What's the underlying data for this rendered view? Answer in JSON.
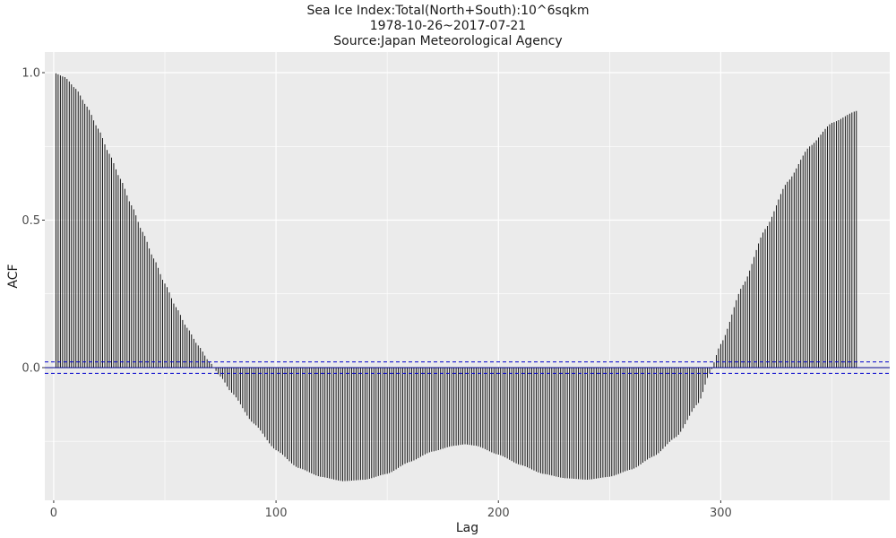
{
  "chart_data": {
    "type": "bar",
    "subtype": "acf-stem",
    "title": [
      "Sea Ice Index:Total(North+South):10^6sqkm",
      "1978-10-26~2017-07-21",
      "Source:Japan Meteorological Agency"
    ],
    "xlabel": "Lag",
    "ylabel": "ACF",
    "xlim": [
      -4,
      376
    ],
    "ylim": [
      -0.45,
      1.07
    ],
    "x_ticks": [
      0,
      100,
      200,
      300
    ],
    "y_ticks": [
      0.0,
      0.5,
      1.0
    ],
    "y_tick_labels": [
      "0.0",
      "0.5",
      "1.0"
    ],
    "lags": {
      "start": 1,
      "end": 361,
      "step": 1
    },
    "acf_anchors": [
      [
        0,
        1.0
      ],
      [
        5,
        0.985
      ],
      [
        10,
        0.945
      ],
      [
        15,
        0.885
      ],
      [
        20,
        0.81
      ],
      [
        25,
        0.725
      ],
      [
        30,
        0.64
      ],
      [
        35,
        0.55
      ],
      [
        40,
        0.46
      ],
      [
        45,
        0.37
      ],
      [
        50,
        0.285
      ],
      [
        55,
        0.205
      ],
      [
        60,
        0.135
      ],
      [
        65,
        0.075
      ],
      [
        70,
        0.02
      ],
      [
        75,
        -0.03
      ],
      [
        80,
        -0.085
      ],
      [
        90,
        -0.19
      ],
      [
        100,
        -0.28
      ],
      [
        110,
        -0.34
      ],
      [
        120,
        -0.37
      ],
      [
        130,
        -0.385
      ],
      [
        140,
        -0.38
      ],
      [
        150,
        -0.36
      ],
      [
        160,
        -0.32
      ],
      [
        170,
        -0.285
      ],
      [
        180,
        -0.265
      ],
      [
        185,
        -0.26
      ],
      [
        190,
        -0.265
      ],
      [
        200,
        -0.295
      ],
      [
        210,
        -0.33
      ],
      [
        220,
        -0.36
      ],
      [
        230,
        -0.375
      ],
      [
        240,
        -0.38
      ],
      [
        250,
        -0.37
      ],
      [
        260,
        -0.345
      ],
      [
        270,
        -0.3
      ],
      [
        280,
        -0.235
      ],
      [
        290,
        -0.12
      ],
      [
        295,
        -0.02
      ],
      [
        300,
        0.08
      ],
      [
        310,
        0.28
      ],
      [
        320,
        0.47
      ],
      [
        330,
        0.63
      ],
      [
        340,
        0.75
      ],
      [
        350,
        0.83
      ],
      [
        361,
        0.87
      ]
    ],
    "confidence_bound": 0.0193,
    "colors": {
      "panel": "#ebebeb",
      "grid": "#ffffff",
      "stem": "#000000",
      "zero_line": "#00008b",
      "ci_line": "#0000cd"
    },
    "grid": true,
    "legend": "none"
  }
}
